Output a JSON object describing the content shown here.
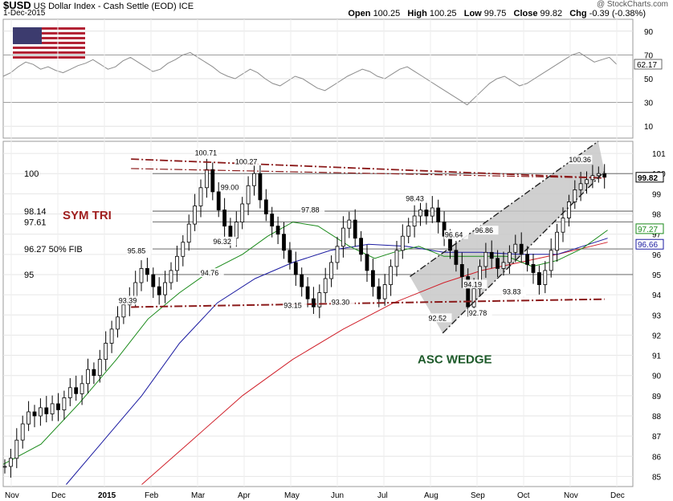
{
  "header": {
    "symbol": "$USD",
    "name": "US Dollar Index - Cash Settle (EOD)",
    "exchange": "ICE",
    "date": "1-Dec-2015",
    "copyright": "@ StockCharts.com",
    "open_label": "Open",
    "open": "100.25",
    "high_label": "High",
    "high": "100.25",
    "low_label": "Low",
    "low": "99.75",
    "close_label": "Close",
    "close": "99.82",
    "chg_label": "Chg",
    "chg": "-0.39 (-0.38%)"
  },
  "colors": {
    "price_bars": "#000000",
    "ma_green": "#1a8a1a",
    "ma_blue": "#1a1aa0",
    "ma_red": "#d0202a",
    "trendline": "#8b1a1a",
    "wedge_fill": "#c8c8c8",
    "annotation_red": "#a02020",
    "annotation_green": "#1d5a2a",
    "rsi_line": "#8c8c8c",
    "flag_blue": "#3c3b6e",
    "flag_red": "#b22234"
  },
  "chart_data": {
    "type": "candlestick",
    "rsi_panel": {
      "ylim": [
        0,
        100
      ],
      "ticks": [
        10,
        30,
        50,
        70,
        90
      ],
      "last_value": "62.17",
      "overbought": 70,
      "oversold": 30,
      "series": [
        52,
        55,
        60,
        64,
        62,
        58,
        60,
        57,
        55,
        58,
        61,
        63,
        66,
        62,
        58,
        60,
        65,
        68,
        64,
        60,
        56,
        58,
        63,
        66,
        70,
        72,
        68,
        64,
        60,
        55,
        52,
        50,
        54,
        58,
        55,
        50,
        46,
        44,
        48,
        52,
        50,
        46,
        42,
        40,
        44,
        48,
        52,
        55,
        58,
        56,
        52,
        50,
        54,
        58,
        60,
        56,
        52,
        48,
        44,
        40,
        36,
        32,
        28,
        34,
        40,
        46,
        50,
        52,
        48,
        44,
        46,
        50,
        54,
        58,
        62,
        66,
        70,
        72,
        68,
        64,
        66,
        68,
        62
      ]
    },
    "price_panel": {
      "ylim": [
        84.5,
        101.6
      ],
      "ticks": [
        85,
        86,
        87,
        88,
        89,
        90,
        91,
        92,
        93,
        94,
        95,
        96,
        97,
        98,
        99,
        100,
        101
      ],
      "x_labels": [
        "Nov",
        "Dec",
        "2015",
        "Feb",
        "Mar",
        "Apr",
        "May",
        "Jun",
        "Jul",
        "Aug",
        "Sep",
        "Oct",
        "Nov",
        "Dec"
      ],
      "last_values": [
        {
          "value": "99.82",
          "kind": "close"
        },
        {
          "value": "97.27",
          "kind": "ma_green"
        },
        {
          "value": "96.66",
          "kind": "ma_red"
        }
      ],
      "horizontal_levels": [
        {
          "value": 100,
          "label": "100"
        },
        {
          "value": 98.14,
          "label": "98.14"
        },
        {
          "value": 97.61,
          "label": "97.61"
        },
        {
          "value": 96.27,
          "label": "96.27  50% FIB"
        },
        {
          "value": 95,
          "label": "95"
        }
      ],
      "price_labels": [
        {
          "text": "100.71",
          "x_frac": 0.321,
          "value": 100.71
        },
        {
          "text": "100.27",
          "x_frac": 0.385,
          "value": 100.27
        },
        {
          "text": "99.00",
          "x_frac": 0.362,
          "value": 99.0
        },
        {
          "text": "95.85",
          "x_frac": 0.214,
          "value": 95.85
        },
        {
          "text": "93.39",
          "x_frac": 0.2,
          "value": 93.39
        },
        {
          "text": "96.32",
          "x_frac": 0.35,
          "value": 96.32
        },
        {
          "text": "94.76",
          "x_frac": 0.33,
          "value": 94.76
        },
        {
          "text": "97.88",
          "x_frac": 0.49,
          "value": 97.88
        },
        {
          "text": "93.15",
          "x_frac": 0.462,
          "value": 93.15
        },
        {
          "text": "93.30",
          "x_frac": 0.538,
          "value": 93.3
        },
        {
          "text": "98.43",
          "x_frac": 0.656,
          "value": 98.43
        },
        {
          "text": "96.64",
          "x_frac": 0.718,
          "value": 96.64
        },
        {
          "text": "96.86",
          "x_frac": 0.766,
          "value": 96.86
        },
        {
          "text": "92.52",
          "x_frac": 0.692,
          "value": 92.52
        },
        {
          "text": "94.19",
          "x_frac": 0.748,
          "value": 94.19
        },
        {
          "text": "92.78",
          "x_frac": 0.756,
          "value": 92.78
        },
        {
          "text": "93.83",
          "x_frac": 0.81,
          "value": 93.83
        },
        {
          "text": "100.36",
          "x_frac": 0.915,
          "value": 100.36
        }
      ],
      "annotations": [
        {
          "text": "SYM TRI",
          "kind": "red"
        },
        {
          "text": "ASC WEDGE",
          "kind": "green"
        }
      ],
      "price_series": [
        85.5,
        85.9,
        86.8,
        87.6,
        88.2,
        88.0,
        88.4,
        88.1,
        88.6,
        88.3,
        88.9,
        89.4,
        89.1,
        89.6,
        90.3,
        90.0,
        90.8,
        91.6,
        92.3,
        92.9,
        93.5,
        93.9,
        94.6,
        95.3,
        95.0,
        94.4,
        94.0,
        94.6,
        95.2,
        95.9,
        96.6,
        97.5,
        98.4,
        99.3,
        100.2,
        99.1,
        98.2,
        97.4,
        96.8,
        97.6,
        98.5,
        99.4,
        100.0,
        98.7,
        98.0,
        97.4,
        97.0,
        96.2,
        95.6,
        95.0,
        94.4,
        93.8,
        93.4,
        94.1,
        94.8,
        95.6,
        96.4,
        97.3,
        97.7,
        96.8,
        96.0,
        95.2,
        94.4,
        93.8,
        94.5,
        95.4,
        96.2,
        96.9,
        97.4,
        97.9,
        98.2,
        97.9,
        98.3,
        97.6,
        96.9,
        96.2,
        95.5,
        94.9,
        93.4,
        94.3,
        95.4,
        96.1,
        95.8,
        95.3,
        95.6,
        96.1,
        96.5,
        96.0,
        95.5,
        95.1,
        94.5,
        95.2,
        96.2,
        97.1,
        97.8,
        98.6,
        99.2,
        99.5,
        99.7,
        99.9,
        100.0,
        99.82
      ],
      "ma_green": [
        null,
        null,
        null,
        null,
        null,
        null,
        null,
        null,
        null,
        null,
        null,
        null,
        null,
        null,
        null,
        null,
        null,
        null,
        null,
        null,
        null,
        null,
        null,
        null,
        null,
        null,
        null,
        null,
        null,
        null,
        null,
        null,
        null,
        null,
        null,
        null,
        null,
        null,
        null,
        null,
        null,
        null,
        null,
        null,
        null,
        null,
        null,
        null,
        null,
        null,
        null,
        null,
        null,
        null,
        null,
        null,
        null,
        null,
        null,
        null,
        null,
        null,
        null,
        null,
        null,
        null,
        null,
        null,
        null,
        null,
        null,
        null,
        null,
        null,
        null,
        null,
        null,
        null,
        null,
        null,
        null,
        null,
        null,
        null,
        null,
        null,
        null,
        null,
        null,
        null,
        null,
        null,
        null,
        null,
        null,
        null,
        null,
        null,
        null,
        null,
        null,
        null
      ],
      "ma_green_pts": [
        [
          0.0,
          85.6
        ],
        [
          0.06,
          86.6
        ],
        [
          0.12,
          88.6
        ],
        [
          0.18,
          90.8
        ],
        [
          0.23,
          92.8
        ],
        [
          0.28,
          94.1
        ],
        [
          0.33,
          95.2
        ],
        [
          0.38,
          96.0
        ],
        [
          0.42,
          96.9
        ],
        [
          0.46,
          97.6
        ],
        [
          0.5,
          97.4
        ],
        [
          0.55,
          96.4
        ],
        [
          0.59,
          95.8
        ],
        [
          0.62,
          96.1
        ],
        [
          0.66,
          96.4
        ],
        [
          0.7,
          95.9
        ],
        [
          0.75,
          95.9
        ],
        [
          0.8,
          95.9
        ],
        [
          0.84,
          95.4
        ],
        [
          0.88,
          95.7
        ],
        [
          0.92,
          96.3
        ],
        [
          0.96,
          97.2
        ]
      ],
      "ma_blue_pts": [
        [
          0.1,
          84.6
        ],
        [
          0.16,
          86.8
        ],
        [
          0.22,
          89.0
        ],
        [
          0.28,
          91.6
        ],
        [
          0.34,
          93.6
        ],
        [
          0.4,
          94.8
        ],
        [
          0.46,
          95.6
        ],
        [
          0.52,
          96.2
        ],
        [
          0.58,
          96.5
        ],
        [
          0.64,
          96.4
        ],
        [
          0.7,
          96.1
        ],
        [
          0.76,
          96.1
        ],
        [
          0.82,
          96.0
        ],
        [
          0.88,
          96.0
        ],
        [
          0.92,
          96.4
        ],
        [
          0.96,
          96.8
        ]
      ],
      "ma_red_pts": [
        [
          0.22,
          84.6
        ],
        [
          0.3,
          86.8
        ],
        [
          0.38,
          89.0
        ],
        [
          0.46,
          90.8
        ],
        [
          0.54,
          92.3
        ],
        [
          0.62,
          93.6
        ],
        [
          0.7,
          94.6
        ],
        [
          0.76,
          95.2
        ],
        [
          0.82,
          95.6
        ],
        [
          0.88,
          96.0
        ],
        [
          0.92,
          96.3
        ],
        [
          0.96,
          96.6
        ]
      ],
      "sym_tri_upper": [
        [
          0.203,
          100.72
        ],
        [
          0.955,
          99.78
        ]
      ],
      "sym_tri_upper2": [
        [
          0.203,
          100.25
        ],
        [
          0.955,
          99.78
        ]
      ],
      "sym_tri_lower": [
        [
          0.203,
          93.39
        ],
        [
          0.955,
          93.78
        ]
      ],
      "wedge_poly": [
        [
          0.646,
          94.9
        ],
        [
          0.945,
          101.6
        ],
        [
          0.955,
          100.1
        ],
        [
          0.698,
          92.1
        ]
      ],
      "wedge_upper": [
        [
          0.646,
          94.9
        ],
        [
          0.945,
          101.6
        ]
      ],
      "wedge_lower": [
        [
          0.698,
          92.1
        ],
        [
          0.955,
          100.1
        ]
      ]
    }
  },
  "flag": {
    "alt": "US flag"
  }
}
